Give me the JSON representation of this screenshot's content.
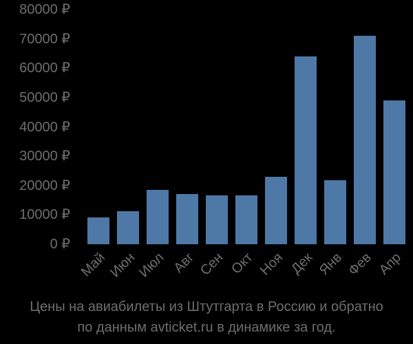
{
  "chart_data": {
    "type": "bar",
    "title": "Цены на авиабилеты из Штутгарта в Россию и обратно по данным avticket.ru в динамике за год.",
    "xlabel": "",
    "ylabel": "",
    "categories": [
      "Май",
      "Июн",
      "Июл",
      "Авг",
      "Сен",
      "Окт",
      "Ноя",
      "Дек",
      "Янв",
      "Фев",
      "Апр"
    ],
    "values": [
      9200,
      11300,
      18500,
      17100,
      16700,
      16700,
      23000,
      64100,
      21800,
      71100,
      49100
    ],
    "ylim": [
      0,
      80000
    ],
    "yticks": [
      "0 ₽",
      "10000 ₽",
      "20000 ₽",
      "30000 ₽",
      "40000 ₽",
      "50000 ₽",
      "60000 ₽",
      "70000 ₽",
      "80000 ₽"
    ],
    "grid": false,
    "legend": null,
    "bar_color": "#4e79a7",
    "currency": "₽"
  },
  "caption": {
    "line1": "Цены на авиабилеты из Штутгарта в Россию и обратно",
    "line2": "по данным avticket.ru в динамике за год."
  }
}
